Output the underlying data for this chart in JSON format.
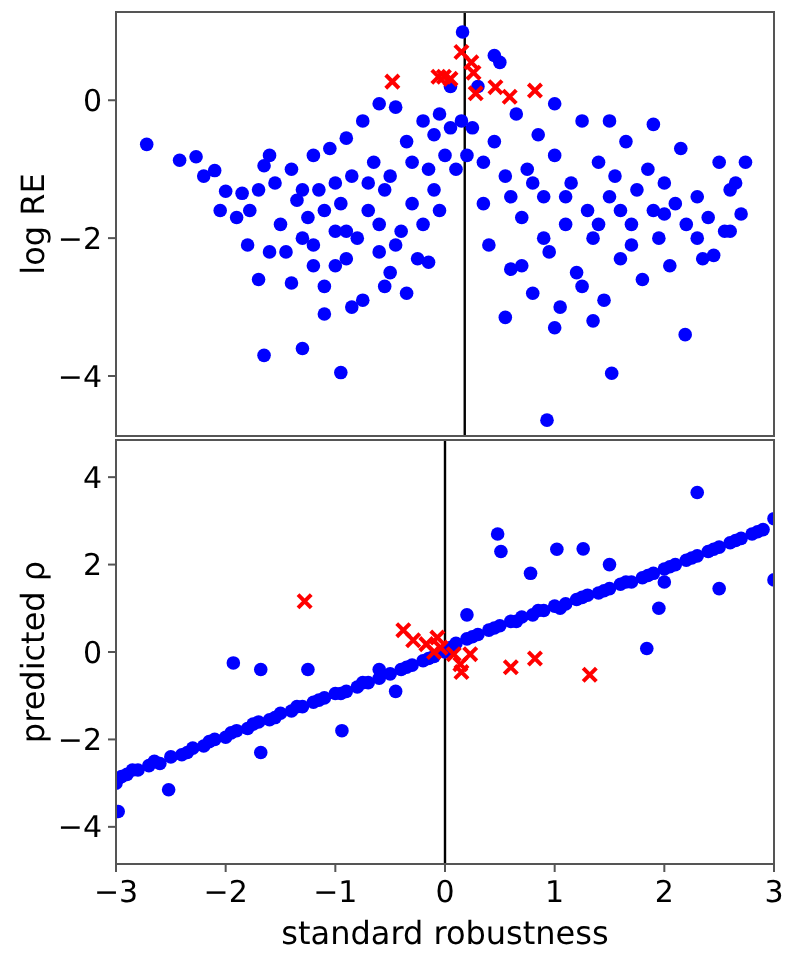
{
  "chart_data": [
    {
      "type": "scatter",
      "ylabel": "log RE",
      "xlim": [
        -3,
        3
      ],
      "ylim": [
        -4.87,
        1.28
      ],
      "yticks": [
        -4,
        -2,
        0
      ],
      "tick_labels": "y",
      "ref_lines": [
        {
          "axis": "x",
          "value": 0.18,
          "color": "#000000"
        }
      ],
      "series": [
        {
          "color": "#0000ff",
          "marker": "circle",
          "x": [
            -2.72,
            -2.42,
            -2.27,
            -2.2,
            -2.1,
            -2.0,
            -1.85,
            -1.78,
            -1.65,
            -1.6,
            -1.55,
            -1.5,
            -1.45,
            -1.4,
            -1.35,
            -1.3,
            -1.25,
            -1.2,
            -1.15,
            -1.1,
            -1.05,
            -1.0,
            -0.95,
            -0.9,
            -0.85,
            -0.8,
            -0.75,
            -0.7,
            -0.65,
            -0.6,
            -0.55,
            -0.5,
            -0.45,
            -0.4,
            -0.35,
            -0.3,
            -0.25,
            -0.2,
            -0.15,
            -0.1,
            -0.05,
            0.0,
            0.05,
            0.1,
            -1.65,
            -0.95,
            -1.3,
            -1.1,
            -0.85,
            -0.55,
            -0.35,
            -1.7,
            -1.6,
            -1.8,
            -1.9,
            -2.05,
            -1.7,
            -1.4,
            -1.2,
            -0.9,
            -0.75,
            -0.6,
            -0.2,
            -0.1,
            -0.3,
            -0.5,
            -0.7,
            -1.0,
            -1.3,
            -1.1,
            -0.9,
            -1.2,
            -1.0,
            -0.6,
            -0.45,
            -0.15,
            0.05,
            -0.05,
            0.15,
            0.2,
            0.3,
            0.35,
            0.4,
            0.45,
            0.5,
            0.55,
            0.6,
            0.65,
            0.7,
            0.75,
            0.8,
            0.85,
            0.9,
            0.95,
            1.0,
            1.05,
            1.1,
            1.15,
            1.2,
            1.25,
            1.3,
            1.35,
            1.4,
            1.45,
            1.5,
            1.55,
            1.6,
            1.65,
            1.7,
            1.75,
            1.8,
            1.85,
            1.9,
            1.95,
            2.0,
            2.05,
            2.1,
            2.15,
            2.2,
            2.3,
            2.35,
            2.4,
            2.5,
            2.55,
            2.6,
            2.65,
            2.74,
            0.93,
            1.52,
            2.19,
            1.0,
            1.35,
            0.55,
            0.45,
            1.0,
            1.5,
            1.9,
            1.25,
            0.9,
            0.6,
            0.35,
            0.25,
            1.6,
            2.0,
            2.3,
            1.1,
            0.8,
            1.4,
            1.7,
            2.45,
            0.7,
            2.7,
            2.6,
            0.16
          ],
          "values": [
            -0.64,
            -0.87,
            -0.82,
            -1.1,
            -1.02,
            -1.32,
            -1.35,
            -1.6,
            -0.95,
            -0.8,
            -1.2,
            -1.8,
            -2.2,
            -2.65,
            -1.45,
            -2.0,
            -1.7,
            -2.4,
            -1.3,
            -2.7,
            -0.7,
            -1.9,
            -1.5,
            -2.3,
            -1.1,
            -2.0,
            -2.9,
            -1.6,
            -0.9,
            -2.2,
            -1.3,
            -2.5,
            -0.1,
            -1.9,
            -0.6,
            -1.5,
            -2.3,
            -0.3,
            -1.0,
            -0.5,
            -0.2,
            -0.8,
            0.2,
            -1.0,
            -3.7,
            -3.95,
            -3.6,
            -3.1,
            -3.0,
            -2.7,
            -2.8,
            -2.6,
            -2.2,
            -2.1,
            -1.7,
            -1.6,
            -1.3,
            -1.0,
            -0.8,
            -0.55,
            -0.3,
            -0.05,
            -1.8,
            -1.3,
            -0.9,
            -1.1,
            -1.2,
            -1.2,
            -1.3,
            -1.6,
            -1.9,
            -2.1,
            -2.4,
            -1.8,
            -2.1,
            -2.35,
            -0.4,
            -1.6,
            -0.3,
            -0.8,
            0.2,
            -1.5,
            -2.1,
            -0.6,
            0.55,
            -1.1,
            -2.45,
            -0.2,
            -1.7,
            -1.0,
            -2.8,
            -0.5,
            -1.4,
            -2.2,
            -0.8,
            -3.0,
            -1.8,
            -1.2,
            -2.5,
            -0.3,
            -1.6,
            -2.0,
            -0.9,
            -2.9,
            -1.4,
            -1.1,
            -2.3,
            -0.6,
            -1.8,
            -1.3,
            -2.6,
            -1.0,
            -1.6,
            -2.0,
            -1.2,
            -2.4,
            -1.5,
            -0.7,
            -1.8,
            -1.4,
            -2.3,
            -1.7,
            -0.9,
            -1.9,
            -1.3,
            -1.2,
            -0.9,
            -4.64,
            -3.96,
            -3.4,
            -3.3,
            -3.2,
            -3.15,
            0.65,
            -0.05,
            -0.3,
            -0.35,
            -2.7,
            -2.0,
            -1.4,
            -0.9,
            -0.4,
            -1.6,
            -1.65,
            -2.0,
            -1.4,
            -1.2,
            -1.8,
            -2.1,
            -2.25,
            -2.4,
            -1.65,
            -1.9,
            0.99
          ]
        },
        {
          "color": "#ff0000",
          "marker": "cross",
          "x": [
            -0.48,
            -0.06,
            -0.01,
            0.05,
            0.15,
            0.24,
            0.26,
            0.28,
            0.46,
            0.59,
            0.82
          ],
          "values": [
            0.27,
            0.34,
            0.34,
            0.31,
            0.7,
            0.55,
            0.4,
            0.1,
            0.19,
            0.05,
            0.14
          ]
        }
      ]
    },
    {
      "type": "scatter",
      "xlabel": "standard robustness",
      "ylabel": "predicted ρ",
      "xlim": [
        -3,
        3
      ],
      "ylim": [
        -4.85,
        4.85
      ],
      "xticks": [
        -3,
        -2,
        -1,
        0,
        1,
        2,
        3
      ],
      "yticks": [
        -4,
        -2,
        0,
        2,
        4
      ],
      "ref_lines": [
        {
          "axis": "x",
          "value": 0,
          "color": "#000000"
        }
      ],
      "series": [
        {
          "color": "#0000ff",
          "marker": "circle",
          "x": [
            -3.0,
            -2.95,
            -2.9,
            -2.8,
            -2.7,
            -2.6,
            -2.5,
            -2.4,
            -2.3,
            -2.2,
            -2.1,
            -2.0,
            -1.9,
            -1.8,
            -1.7,
            -1.6,
            -1.5,
            -1.4,
            -1.3,
            -1.2,
            -1.1,
            -1.0,
            -0.9,
            -0.8,
            -0.7,
            -0.6,
            -0.5,
            -0.4,
            -0.3,
            -0.2,
            -0.1,
            0.0,
            0.1,
            0.2,
            0.3,
            0.4,
            0.5,
            0.6,
            0.7,
            0.8,
            0.9,
            1.0,
            1.1,
            1.2,
            1.3,
            1.4,
            1.5,
            1.6,
            1.7,
            1.8,
            1.9,
            2.0,
            2.1,
            2.2,
            2.3,
            2.4,
            2.5,
            2.6,
            2.7,
            2.8,
            2.9,
            3.0,
            -2.85,
            -2.65,
            -2.35,
            -2.15,
            -1.95,
            -1.75,
            -1.55,
            -1.35,
            -1.15,
            -0.95,
            -0.75,
            -0.35,
            -0.15,
            0.05,
            0.25,
            0.45,
            0.65,
            0.85,
            1.05,
            1.25,
            1.45,
            1.65,
            1.85,
            2.05,
            2.25,
            2.45,
            2.65,
            2.85,
            2.3,
            0.48,
            0.51,
            1.02,
            1.26,
            0.78,
            2.5,
            1.84,
            1.95,
            -1.93,
            -1.68,
            -0.94,
            -2.52,
            -2.98,
            -1.68,
            -1.25,
            3.0,
            -0.6,
            -0.45,
            0.2,
            1.5,
            2.0
          ],
          "values": [
            -3.0,
            -2.85,
            -2.8,
            -2.7,
            -2.6,
            -2.55,
            -2.4,
            -2.35,
            -2.2,
            -2.15,
            -2.0,
            -1.95,
            -1.8,
            -1.75,
            -1.6,
            -1.55,
            -1.4,
            -1.35,
            -1.25,
            -1.15,
            -1.05,
            -0.95,
            -0.9,
            -0.8,
            -0.7,
            -0.6,
            -0.5,
            -0.4,
            -0.3,
            -0.2,
            -0.1,
            0.0,
            0.2,
            0.3,
            0.4,
            0.5,
            0.6,
            0.7,
            0.8,
            0.85,
            0.95,
            1.05,
            1.1,
            1.2,
            1.3,
            1.35,
            1.45,
            1.55,
            1.6,
            1.7,
            1.8,
            1.9,
            2.0,
            2.1,
            2.2,
            2.3,
            2.4,
            2.5,
            2.6,
            2.7,
            2.8,
            3.05,
            -2.7,
            -2.5,
            -2.3,
            -2.05,
            -1.85,
            -1.65,
            -1.5,
            -1.25,
            -1.1,
            -0.95,
            -0.7,
            -0.35,
            -0.15,
            0.1,
            0.35,
            0.55,
            0.7,
            0.95,
            1.0,
            1.25,
            1.4,
            1.6,
            1.75,
            1.95,
            2.15,
            2.35,
            2.55,
            2.75,
            3.65,
            2.7,
            2.3,
            2.35,
            2.36,
            1.8,
            1.45,
            0.08,
            1.0,
            -0.25,
            -0.4,
            -1.8,
            -3.15,
            -3.65,
            -2.3,
            -0.4,
            1.65,
            -0.4,
            -0.9,
            0.85,
            2.0,
            1.6
          ]
        },
        {
          "color": "#ff0000",
          "marker": "cross",
          "x": [
            -1.28,
            -0.38,
            -0.29,
            -0.17,
            -0.1,
            -0.07,
            -0.04,
            0.08,
            0.14,
            0.15,
            0.23,
            0.6,
            0.82,
            1.32
          ],
          "values": [
            1.16,
            0.5,
            0.27,
            0.18,
            0.0,
            0.33,
            0.1,
            -0.05,
            -0.28,
            -0.46,
            -0.05,
            -0.35,
            -0.15,
            -0.52
          ]
        }
      ]
    }
  ]
}
